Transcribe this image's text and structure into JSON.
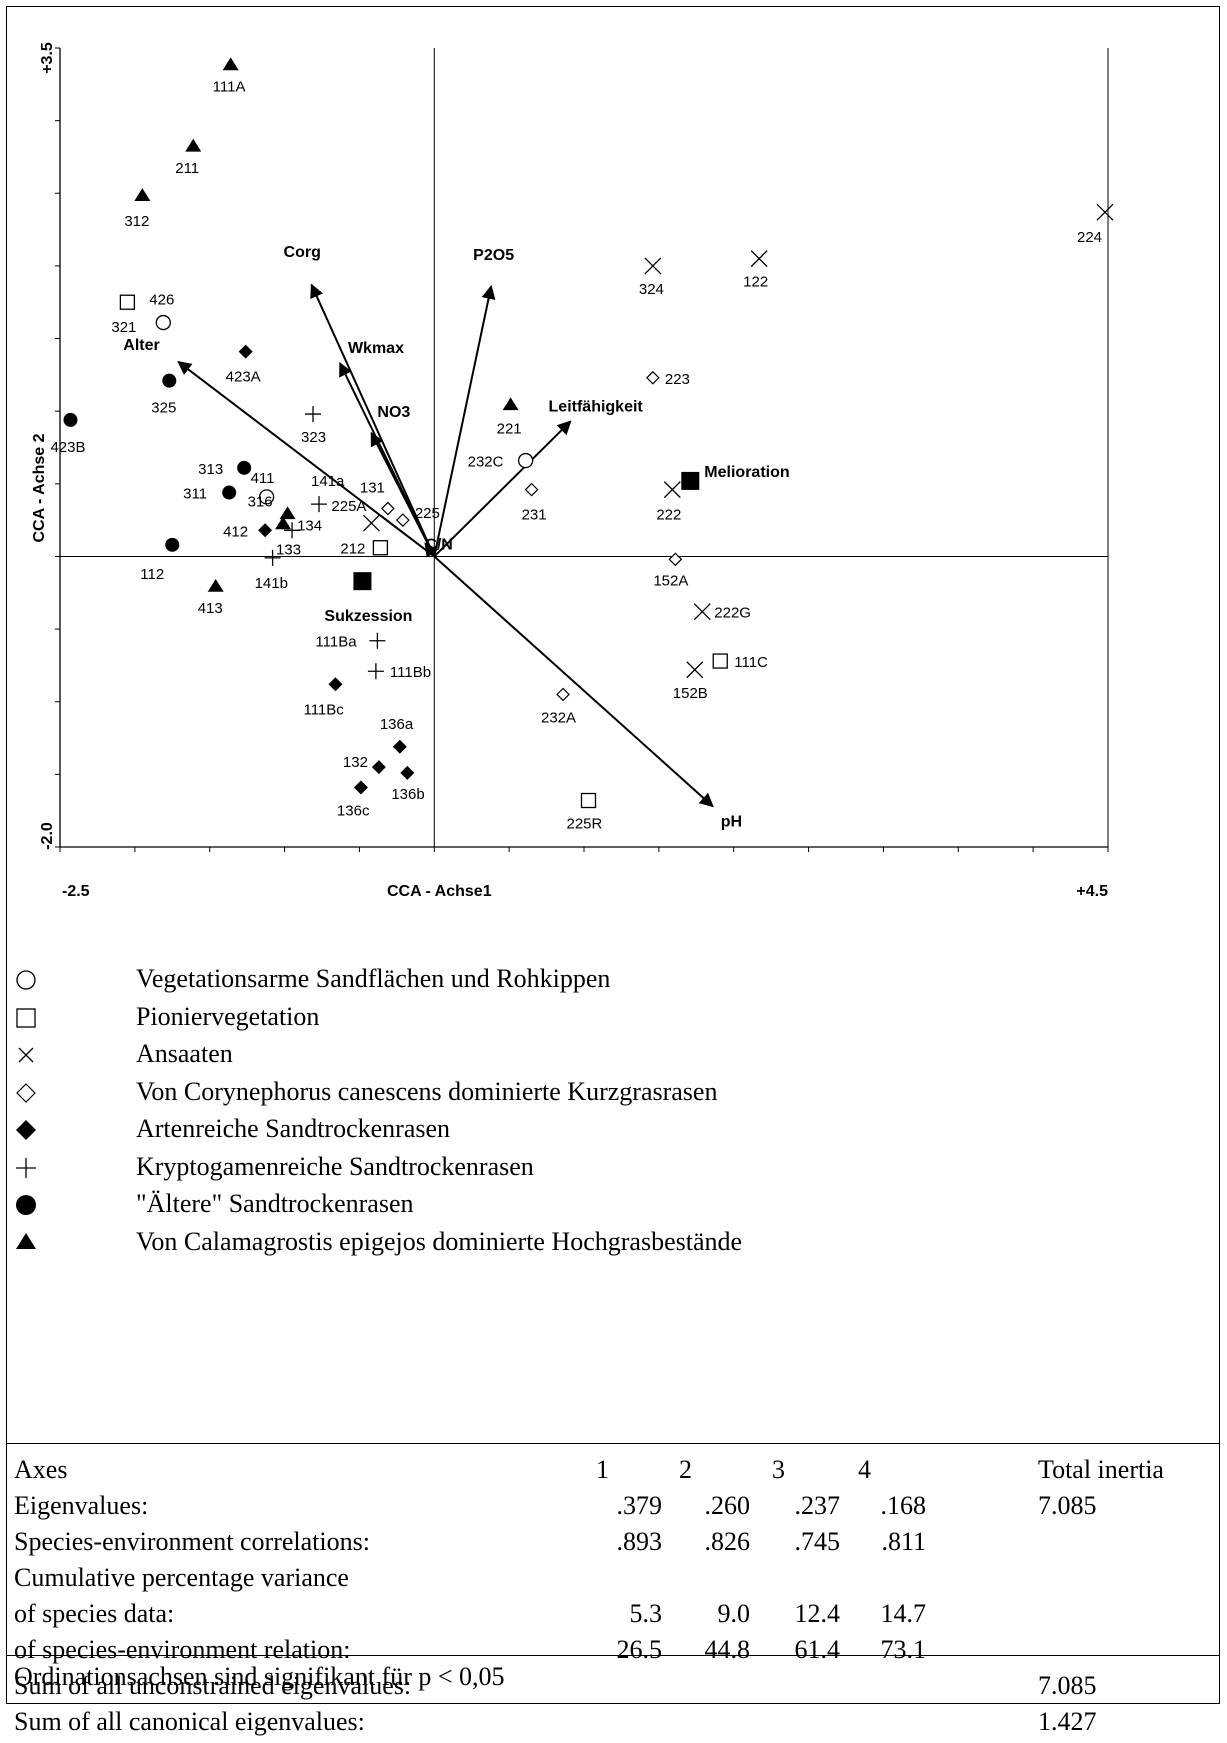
{
  "chart_data": {
    "type": "scatter",
    "title": "",
    "xlabel": "CCA - Achse1",
    "ylabel": "CCA - Achse 2",
    "xlim": [
      -2.5,
      4.5
    ],
    "ylim": [
      -2.0,
      3.5
    ],
    "x_tick_labels": {
      "min": "-2.5",
      "max": "+4.5"
    },
    "y_tick_labels": {
      "min": "-2.0",
      "max": "+3.5"
    },
    "groups": [
      {
        "name": "Vegetationsarme Sandflächen und Rohkippen",
        "symbol": "circle-open",
        "points": [
          {
            "label": "426",
            "x": -1.81,
            "y": 1.61
          },
          {
            "label": "411",
            "x": -1.12,
            "y": 0.41
          },
          {
            "label": "232C",
            "x": 0.61,
            "y": 0.66
          }
        ]
      },
      {
        "name": "Pioniervegetation",
        "symbol": "square-open",
        "points": [
          {
            "label": "321",
            "x": -2.05,
            "y": 1.75
          },
          {
            "label": "212",
            "x": -0.36,
            "y": 0.06
          },
          {
            "label": "111C",
            "x": 1.91,
            "y": -0.72
          },
          {
            "label": "225R",
            "x": 1.03,
            "y": -1.68
          }
        ]
      },
      {
        "name": "Ansaaten",
        "symbol": "x",
        "points": [
          {
            "label": "224",
            "x": 4.48,
            "y": 2.37
          },
          {
            "label": "324",
            "x": 1.46,
            "y": 2.0
          },
          {
            "label": "122",
            "x": 2.17,
            "y": 2.05
          },
          {
            "label": "222",
            "x": 1.59,
            "y": 0.46
          },
          {
            "label": "222G",
            "x": 1.79,
            "y": -0.38
          },
          {
            "label": "152B",
            "x": 1.74,
            "y": -0.78
          },
          {
            "label": "225A",
            "x": -0.42,
            "y": 0.23
          }
        ]
      },
      {
        "name": "Von Corynephorus canescens dominierte Kurzgrasrasen",
        "symbol": "diamond-open",
        "points": [
          {
            "label": "223",
            "x": 1.46,
            "y": 1.23
          },
          {
            "label": "231",
            "x": 0.65,
            "y": 0.46
          },
          {
            "label": "152A",
            "x": 1.61,
            "y": -0.02
          },
          {
            "label": "232A",
            "x": 0.86,
            "y": -0.95
          },
          {
            "label": "131",
            "x": -0.31,
            "y": 0.33
          },
          {
            "label": "225",
            "x": -0.21,
            "y": 0.25
          }
        ]
      },
      {
        "name": "Artenreiche Sandtrockenrasen",
        "symbol": "diamond-filled",
        "points": [
          {
            "label": "423A",
            "x": -1.26,
            "y": 1.41
          },
          {
            "label": "412",
            "x": -1.13,
            "y": 0.18
          },
          {
            "label": "111Bc",
            "x": -0.66,
            "y": -0.88
          },
          {
            "label": "136a",
            "x": -0.23,
            "y": -1.31
          },
          {
            "label": "132",
            "x": -0.37,
            "y": -1.45
          },
          {
            "label": "136b",
            "x": -0.18,
            "y": -1.49
          },
          {
            "label": "136c",
            "x": -0.49,
            "y": -1.59
          }
        ]
      },
      {
        "name": "Kryptogamenreiche Sandtrockenrasen",
        "symbol": "plus",
        "points": [
          {
            "label": "323",
            "x": -0.81,
            "y": 0.98
          },
          {
            "label": "141a",
            "x": -0.77,
            "y": 0.36
          },
          {
            "label": "133",
            "x": -0.95,
            "y": 0.18
          },
          {
            "label": "141b",
            "x": -1.08,
            "y": -0.01
          },
          {
            "label": "111Ba",
            "x": -0.38,
            "y": -0.58
          },
          {
            "label": "111Bb",
            "x": -0.39,
            "y": -0.79
          }
        ]
      },
      {
        "name": "\"Ältere\" Sandtrockenrasen",
        "symbol": "circle-filled",
        "points": [
          {
            "label": "325",
            "x": -1.77,
            "y": 1.21
          },
          {
            "label": "423B",
            "x": -2.43,
            "y": 0.94
          },
          {
            "label": "313",
            "x": -1.27,
            "y": 0.61
          },
          {
            "label": "311",
            "x": -1.37,
            "y": 0.44
          },
          {
            "label": "112",
            "x": -1.75,
            "y": 0.08
          }
        ]
      },
      {
        "name": "Von Calamagrostis epigejos dominierte Hochgrasbestände",
        "symbol": "triangle-filled",
        "points": [
          {
            "label": "111A",
            "x": -1.36,
            "y": 3.38
          },
          {
            "label": "211",
            "x": -1.61,
            "y": 2.82
          },
          {
            "label": "312",
            "x": -1.95,
            "y": 2.48
          },
          {
            "label": "221",
            "x": 0.51,
            "y": 1.04
          },
          {
            "label": "316",
            "x": -0.98,
            "y": 0.29
          },
          {
            "label": "134",
            "x": -1.01,
            "y": 0.22
          },
          {
            "label": "413",
            "x": -1.46,
            "y": -0.21
          }
        ]
      }
    ],
    "environment_arrows": [
      {
        "label": "Alter",
        "x": -1.71,
        "y": 1.34
      },
      {
        "label": "Corg",
        "x": -0.82,
        "y": 1.87
      },
      {
        "label": "Wkmax",
        "x": -0.63,
        "y": 1.33
      },
      {
        "label": "NO3",
        "x": -0.42,
        "y": 0.85
      },
      {
        "label": "C/N",
        "x": -0.06,
        "y": 0.09
      },
      {
        "label": "P2O5",
        "x": 0.38,
        "y": 1.86
      },
      {
        "label": "Leitfähigkeit",
        "x": 0.91,
        "y": 0.93
      },
      {
        "label": "pH",
        "x": 1.86,
        "y": -1.72
      }
    ],
    "centroids": [
      {
        "label": "Melioration",
        "x": 1.71,
        "y": 0.52
      },
      {
        "label": "Sukzession",
        "x": -0.48,
        "y": -0.17
      }
    ]
  },
  "legend": [
    {
      "symbol": "circle-open",
      "text": "Vegetationsarme Sandflächen und Rohkippen"
    },
    {
      "symbol": "square-open",
      "text": "Pioniervegetation"
    },
    {
      "symbol": "x",
      "text": "Ansaaten"
    },
    {
      "symbol": "diamond-open",
      "text": "Von Corynephorus canescens dominierte Kurzgrasrasen"
    },
    {
      "symbol": "diamond-filled",
      "text": "Artenreiche Sandtrockenrasen"
    },
    {
      "symbol": "plus",
      "text": "Kryptogamenreiche Sandtrockenrasen"
    },
    {
      "symbol": "circle-filled",
      "text": "\"Ältere\" Sandtrockenrasen"
    },
    {
      "symbol": "triangle-filled",
      "text": "Von Calamagrostis epigejos dominierte Hochgrasbestände"
    }
  ],
  "stats": {
    "header": {
      "label": "Axes",
      "c1": "1",
      "c2": "2",
      "c3": "3",
      "c4": "4",
      "total": "Total inertia"
    },
    "eigen": {
      "label": "Eigenvalues:",
      "c1": ".379",
      "c2": ".260",
      "c3": ".237",
      "c4": ".168",
      "total": "7.085"
    },
    "corr": {
      "label": "Species-environment correlations:",
      "c1": ".893",
      "c2": ".826",
      "c3": ".745",
      "c4": ".811"
    },
    "cum_label": "Cumulative percentage variance",
    "species": {
      "label": "of species data:",
      "c1": "5.3",
      "c2": "9.0",
      "c3": "12.4",
      "c4": "14.7"
    },
    "relation": {
      "label": "of species-environment relation:",
      "c1": "26.5",
      "c2": "44.8",
      "c3": "61.4",
      "c4": "73.1"
    },
    "unconstrained": {
      "label": "Sum of all unconstrained eigenvalues:",
      "total": "7.085"
    },
    "canonical": {
      "label": "Sum of all canonical eigenvalues:",
      "total": "1.427"
    },
    "note": "Ordinationsachsen sind signifikant für p < 0,05"
  }
}
